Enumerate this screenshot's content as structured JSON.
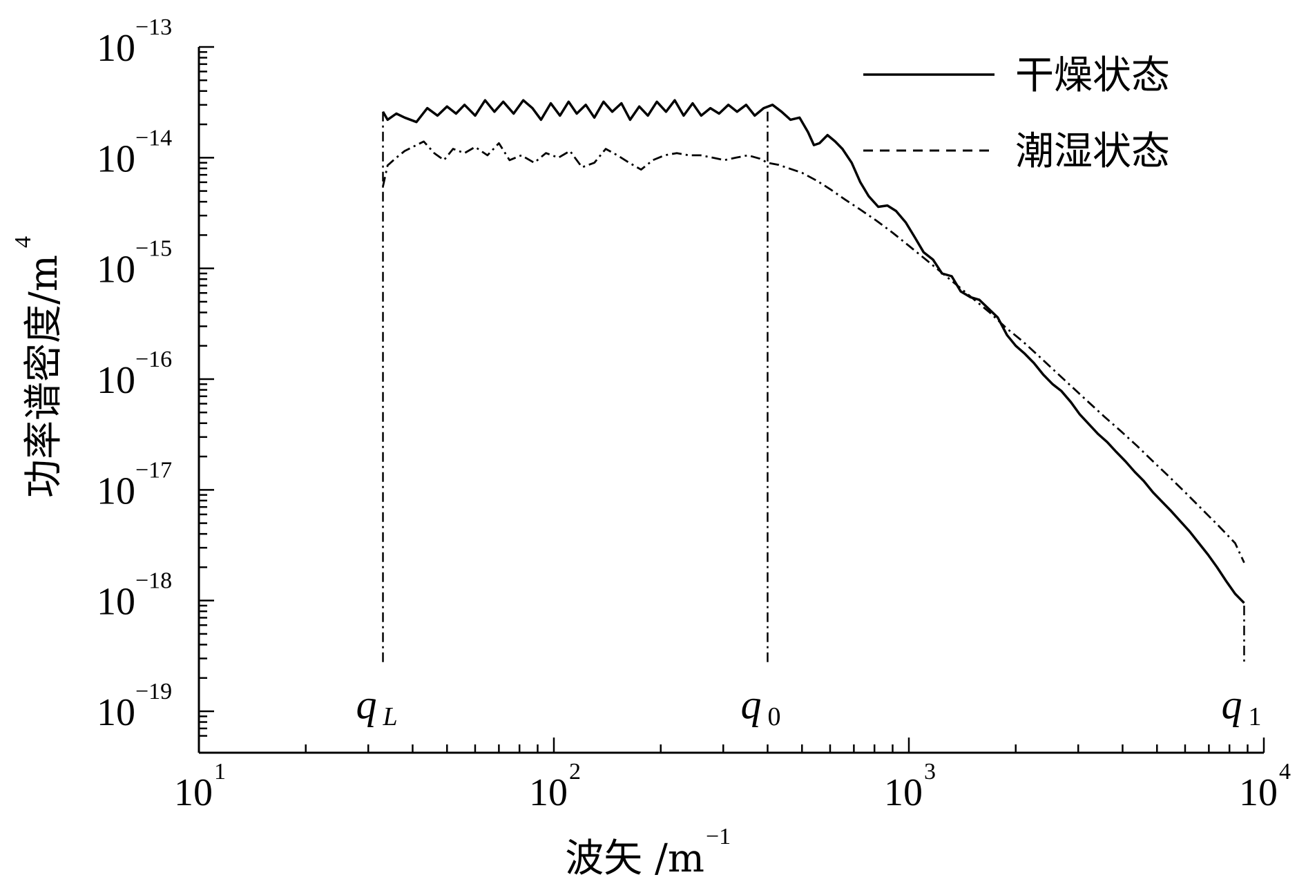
{
  "chart_data": {
    "type": "line",
    "xscale": "log",
    "yscale": "log",
    "xlim": [
      10,
      10000
    ],
    "ylim": [
      1e-19,
      1e-13
    ],
    "xlabel": "波矢 /m",
    "xlabel_unit_exp": "−1",
    "ylabel": "功率谱密度/m",
    "ylabel_unit_exp": "4",
    "x_ticks": [
      {
        "base": "10",
        "exp": "1",
        "value": 10
      },
      {
        "base": "10",
        "exp": "2",
        "value": 100
      },
      {
        "base": "10",
        "exp": "3",
        "value": 1000
      },
      {
        "base": "10",
        "exp": "4",
        "value": 10000
      }
    ],
    "y_ticks": [
      {
        "base": "10",
        "exp": "−13",
        "value": 1e-13
      },
      {
        "base": "10",
        "exp": "−14",
        "value": 1e-14
      },
      {
        "base": "10",
        "exp": "−15",
        "value": 1e-15
      },
      {
        "base": "10",
        "exp": "−16",
        "value": 1e-16
      },
      {
        "base": "10",
        "exp": "−17",
        "value": 1e-17
      },
      {
        "base": "10",
        "exp": "−18",
        "value": 1e-18
      },
      {
        "base": "10",
        "exp": "−19",
        "value": 1e-19
      }
    ],
    "grid": false,
    "legend": {
      "position": "top-right"
    },
    "markers": [
      {
        "label": "q",
        "sub": "L",
        "sub_italic": true,
        "x": 33
      },
      {
        "label": "q",
        "sub": "0",
        "sub_italic": false,
        "x": 400
      },
      {
        "label": "q",
        "sub": "1",
        "sub_italic": false,
        "x": 8800
      }
    ],
    "series": [
      {
        "name": "干燥状态",
        "style": "solid",
        "points": [
          [
            33,
            2.6e-14
          ],
          [
            34,
            2.2e-14
          ],
          [
            36,
            2.5e-14
          ],
          [
            38,
            2.3e-14
          ],
          [
            41,
            2.1e-14
          ],
          [
            44,
            2.8e-14
          ],
          [
            47,
            2.4e-14
          ],
          [
            50,
            2.9e-14
          ],
          [
            53,
            2.5e-14
          ],
          [
            56,
            3e-14
          ],
          [
            60,
            2.4e-14
          ],
          [
            64,
            3.3e-14
          ],
          [
            68,
            2.6e-14
          ],
          [
            72,
            3.2e-14
          ],
          [
            77,
            2.5e-14
          ],
          [
            82,
            3.3e-14
          ],
          [
            87,
            2.8e-14
          ],
          [
            92,
            2.2e-14
          ],
          [
            98,
            3.1e-14
          ],
          [
            104,
            2.4e-14
          ],
          [
            110,
            3.2e-14
          ],
          [
            116,
            2.5e-14
          ],
          [
            123,
            3e-14
          ],
          [
            130,
            2.3e-14
          ],
          [
            138,
            3.2e-14
          ],
          [
            146,
            2.6e-14
          ],
          [
            155,
            3.1e-14
          ],
          [
            164,
            2.2e-14
          ],
          [
            174,
            2.9e-14
          ],
          [
            184,
            2.4e-14
          ],
          [
            195,
            3.2e-14
          ],
          [
            207,
            2.6e-14
          ],
          [
            219,
            3.3e-14
          ],
          [
            232,
            2.4e-14
          ],
          [
            246,
            3.1e-14
          ],
          [
            260,
            2.4e-14
          ],
          [
            276,
            2.8e-14
          ],
          [
            292,
            2.5e-14
          ],
          [
            310,
            3e-14
          ],
          [
            328,
            2.6e-14
          ],
          [
            348,
            3e-14
          ],
          [
            368,
            2.4e-14
          ],
          [
            390,
            2.8e-14
          ],
          [
            413,
            3e-14
          ],
          [
            438,
            2.6e-14
          ],
          [
            464,
            2.2e-14
          ],
          [
            492,
            2.3e-14
          ],
          [
            520,
            1.7e-14
          ],
          [
            540,
            1.3e-14
          ],
          [
            560,
            1.35e-14
          ],
          [
            590,
            1.6e-14
          ],
          [
            620,
            1.4e-14
          ],
          [
            650,
            1.2e-14
          ],
          [
            690,
            9e-15
          ],
          [
            730,
            6e-15
          ],
          [
            770,
            4.5e-15
          ],
          [
            820,
            3.6e-15
          ],
          [
            870,
            3.7e-15
          ],
          [
            920,
            3.3e-15
          ],
          [
            980,
            2.6e-15
          ],
          [
            1040,
            1.9e-15
          ],
          [
            1100,
            1.4e-15
          ],
          [
            1170,
            1.2e-15
          ],
          [
            1240,
            9e-16
          ],
          [
            1320,
            8.5e-16
          ],
          [
            1400,
            6.2e-16
          ],
          [
            1490,
            5.5e-16
          ],
          [
            1580,
            5.2e-16
          ],
          [
            1680,
            4.3e-16
          ],
          [
            1780,
            3.6e-16
          ],
          [
            1890,
            2.5e-16
          ],
          [
            2000,
            2e-16
          ],
          [
            2120,
            1.7e-16
          ],
          [
            2250,
            1.4e-16
          ],
          [
            2390,
            1.1e-16
          ],
          [
            2540,
            9e-17
          ],
          [
            2690,
            7.8e-17
          ],
          [
            2860,
            6.2e-17
          ],
          [
            3030,
            4.8e-17
          ],
          [
            3220,
            3.9e-17
          ],
          [
            3410,
            3.2e-17
          ],
          [
            3620,
            2.7e-17
          ],
          [
            3840,
            2.2e-17
          ],
          [
            4080,
            1.8e-17
          ],
          [
            4330,
            1.45e-17
          ],
          [
            4590,
            1.2e-17
          ],
          [
            4870,
            9.5e-18
          ],
          [
            5170,
            7.8e-18
          ],
          [
            5490,
            6.4e-18
          ],
          [
            5820,
            5.2e-18
          ],
          [
            6180,
            4.2e-18
          ],
          [
            6560,
            3.3e-18
          ],
          [
            6960,
            2.6e-18
          ],
          [
            7380,
            2e-18
          ],
          [
            7830,
            1.5e-18
          ],
          [
            8300,
            1.15e-18
          ],
          [
            8800,
            9.5e-19
          ]
        ]
      },
      {
        "name": "潮湿状态",
        "style": "dashed",
        "points": [
          [
            33,
            5.5e-15
          ],
          [
            34,
            8.5e-15
          ],
          [
            36,
            1e-14
          ],
          [
            38,
            1.15e-14
          ],
          [
            41,
            1.3e-14
          ],
          [
            43,
            1.4e-14
          ],
          [
            46,
            1.1e-14
          ],
          [
            49,
            9.5e-15
          ],
          [
            52,
            1.2e-14
          ],
          [
            56,
            1.1e-14
          ],
          [
            60,
            1.25e-14
          ],
          [
            65,
            1.05e-14
          ],
          [
            70,
            1.35e-14
          ],
          [
            75,
            9.5e-15
          ],
          [
            81,
            1.05e-14
          ],
          [
            88,
            9e-15
          ],
          [
            95,
            1.1e-14
          ],
          [
            103,
            1e-14
          ],
          [
            111,
            1.15e-14
          ],
          [
            120,
            8.2e-15
          ],
          [
            130,
            9e-15
          ],
          [
            140,
            1.2e-14
          ],
          [
            151,
            1.05e-14
          ],
          [
            163,
            9e-15
          ],
          [
            176,
            7.8e-15
          ],
          [
            190,
            9.5e-15
          ],
          [
            205,
            1.05e-14
          ],
          [
            222,
            1.1e-14
          ],
          [
            240,
            1.05e-14
          ],
          [
            259,
            1.05e-14
          ],
          [
            280,
            1e-14
          ],
          [
            302,
            9.5e-15
          ],
          [
            326,
            1e-14
          ],
          [
            352,
            1.05e-14
          ],
          [
            380,
            9.8e-15
          ],
          [
            400,
            9e-15
          ],
          [
            430,
            8.6e-15
          ],
          [
            460,
            8e-15
          ],
          [
            500,
            7.3e-15
          ],
          [
            550,
            6.2e-15
          ],
          [
            600,
            5.2e-15
          ],
          [
            660,
            4.2e-15
          ],
          [
            730,
            3.4e-15
          ],
          [
            810,
            2.7e-15
          ],
          [
            900,
            2.1e-15
          ],
          [
            1000,
            1.6e-15
          ],
          [
            1110,
            1.22e-15
          ],
          [
            1230,
            9.3e-16
          ],
          [
            1370,
            7e-16
          ],
          [
            1520,
            5.3e-16
          ],
          [
            1690,
            4e-16
          ],
          [
            1880,
            2.9e-16
          ],
          [
            2090,
            2.2e-16
          ],
          [
            2320,
            1.62e-16
          ],
          [
            2580,
            1.18e-16
          ],
          [
            2870,
            8.6e-17
          ],
          [
            3190,
            6.3e-17
          ],
          [
            3550,
            4.6e-17
          ],
          [
            3950,
            3.4e-17
          ],
          [
            4390,
            2.5e-17
          ],
          [
            4880,
            1.8e-17
          ],
          [
            5430,
            1.3e-17
          ],
          [
            6040,
            9.3e-18
          ],
          [
            6720,
            6.6e-18
          ],
          [
            7470,
            4.7e-18
          ],
          [
            8300,
            3.3e-18
          ],
          [
            8800,
            2.2e-18
          ]
        ]
      }
    ]
  }
}
